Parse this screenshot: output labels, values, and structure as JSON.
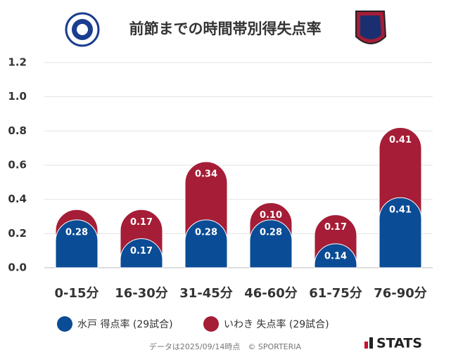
{
  "chart_data": {
    "type": "stacked_bar",
    "title": "前節までの時間帯別得失点率",
    "categories": [
      "0-15分",
      "16-30分",
      "31-45分",
      "46-60分",
      "61-75分",
      "76-90分"
    ],
    "series": [
      {
        "name": "水戸 得点率 (29試合)",
        "color": "#0a4c95",
        "values": [
          0.28,
          0.17,
          0.28,
          0.28,
          0.14,
          0.41
        ],
        "value_labels": [
          "0.28",
          "0.17",
          "0.28",
          "0.28",
          "0.14",
          "0.41"
        ]
      },
      {
        "name": "いわき 失点率 (29試合)",
        "color": "#a51d36",
        "values": [
          0.06,
          0.17,
          0.34,
          0.1,
          0.17,
          0.41
        ],
        "value_labels": [
          null,
          "0.17",
          "0.34",
          "0.10",
          "0.17",
          "0.41"
        ]
      }
    ],
    "ylim": [
      0,
      1.2
    ],
    "yticks": [
      {
        "value": 0,
        "label": "0.0"
      },
      {
        "value": 0.2,
        "label": "0.2"
      },
      {
        "value": 0.4,
        "label": "0.4"
      },
      {
        "value": 0.6,
        "label": "0.6"
      },
      {
        "value": 0.8,
        "label": "0.8"
      },
      {
        "value": 1.0,
        "label": "1.0"
      },
      {
        "value": 1.2,
        "label": "1.2"
      }
    ],
    "grid": true,
    "footer": "データは2025/09/14時点　© SPORTERIA",
    "brand": "STATS"
  }
}
